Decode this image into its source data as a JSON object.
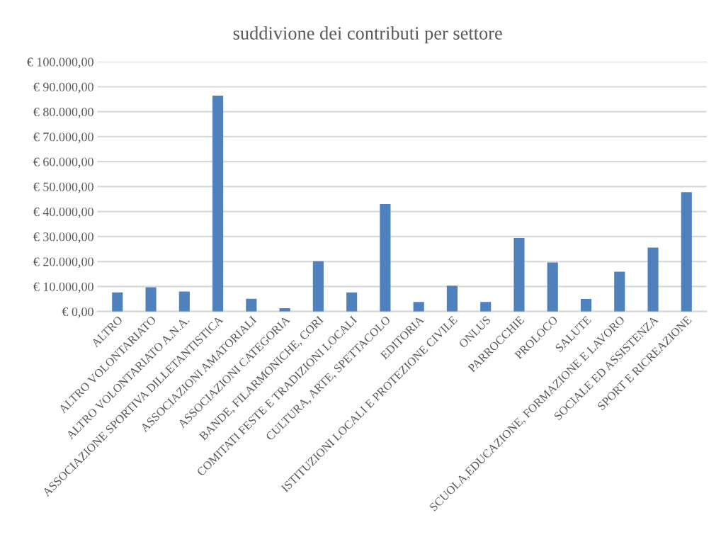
{
  "chart_data": {
    "type": "bar",
    "title": "suddivione dei contributi per settore",
    "categories": [
      "ALTRO",
      "ALTRO VOLONTARIATO",
      "ALTRO VOLONTARIATO A.N.A.",
      "ASSOCIAZIONE SPORTIVA DILLETANTISTICA",
      "ASSOCIAZIONI AMATORIALI",
      "ASSOCIAZIONI CATEGORIA",
      "BANDE, FILARMONICHE, CORI",
      "COMITATI FESTE E TRADIZIONI LOCALI",
      "CULTURA, ARTE, SPETTACOLO",
      "EDITORIA",
      "ISTITUZIONI LOCALI E PROTEZIONE CIVILE",
      "ONLUS",
      "PARROCCHIE",
      "PROLOCO",
      "SALUTE",
      "SCUOLA,EDUCAZIONE, FORMAZIONE E LAVORO",
      "SOCIALE ED ASSISTENZA",
      "SPORT E RICREAZIONE"
    ],
    "values": [
      7600,
      9700,
      8000,
      86400,
      5100,
      1300,
      20100,
      7600,
      43000,
      3800,
      10300,
      3800,
      29400,
      19600,
      5000,
      15900,
      25600,
      47800
    ],
    "color": "#4f81bd",
    "ylim": [
      0,
      100000
    ],
    "yticks": [
      {
        "value": 0,
        "label": "€ 0,00"
      },
      {
        "value": 10000,
        "label": "€ 10.000,00"
      },
      {
        "value": 20000,
        "label": "€ 20.000,00"
      },
      {
        "value": 30000,
        "label": "€ 30.000,00"
      },
      {
        "value": 40000,
        "label": "€ 40.000,00"
      },
      {
        "value": 50000,
        "label": "€ 50.000,00"
      },
      {
        "value": 60000,
        "label": "€ 60.000,00"
      },
      {
        "value": 70000,
        "label": "€ 70.000,00"
      },
      {
        "value": 80000,
        "label": "€ 80.000,00"
      },
      {
        "value": 90000,
        "label": "€ 90.000,00"
      },
      {
        "value": 100000,
        "label": "€ 100.000,00"
      }
    ],
    "grid": "y"
  }
}
